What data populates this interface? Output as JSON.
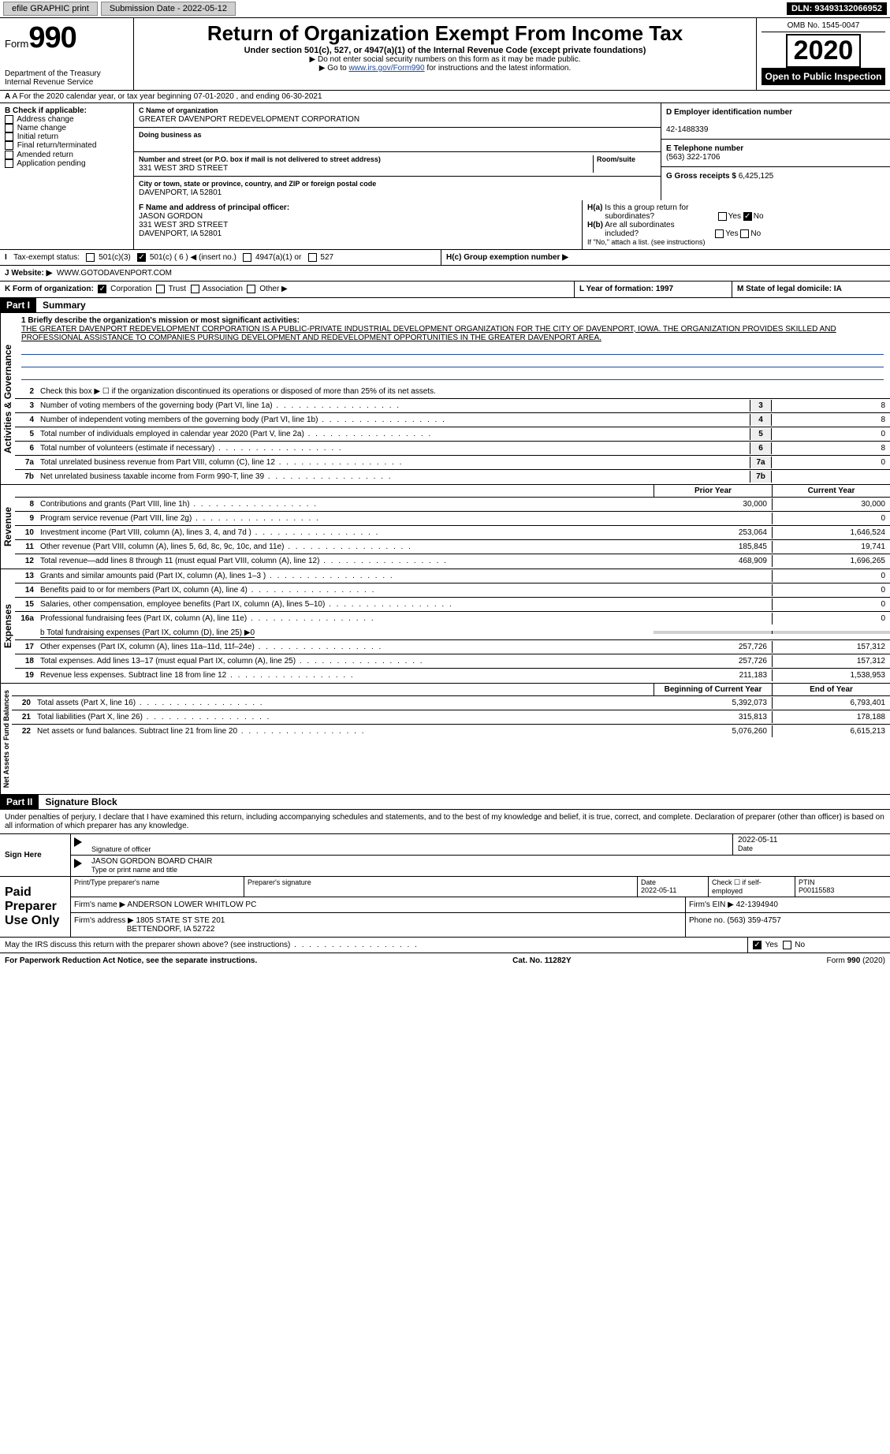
{
  "topbar": {
    "efile": "efile GRAPHIC print",
    "submission_lbl": "Submission Date - 2022-05-12",
    "dln_lbl": "DLN: 93493132066952"
  },
  "header": {
    "form_prefix": "Form",
    "form_num": "990",
    "dept": "Department of the Treasury",
    "irs": "Internal Revenue Service",
    "title": "Return of Organization Exempt From Income Tax",
    "subtitle": "Under section 501(c), 527, or 4947(a)(1) of the Internal Revenue Code (except private foundations)",
    "ssn_note": "▶ Do not enter social security numbers on this form as it may be made public.",
    "goto_prefix": "▶ Go to ",
    "goto_link": "www.irs.gov/Form990",
    "goto_suffix": " for instructions and the latest information.",
    "omb": "OMB No. 1545-0047",
    "year": "2020",
    "open": "Open to Public Inspection"
  },
  "rowA": {
    "text": "A For the 2020 calendar year, or tax year beginning 07-01-2020    , and ending 06-30-2021"
  },
  "boxB": {
    "title": "B Check if applicable:",
    "items": [
      "Address change",
      "Name change",
      "Initial return",
      "Final return/terminated",
      "Amended return",
      "Application pending"
    ]
  },
  "boxC": {
    "name_lbl": "C Name of organization",
    "name": "GREATER DAVENPORT REDEVELOPMENT CORPORATION",
    "dba_lbl": "Doing business as",
    "dba": "",
    "street_lbl": "Number and street (or P.O. box if mail is not delivered to street address)",
    "room_lbl": "Room/suite",
    "street": "331 WEST 3RD STREET",
    "city_lbl": "City or town, state or province, country, and ZIP or foreign postal code",
    "city": "DAVENPORT, IA  52801"
  },
  "boxD": {
    "lbl": "D Employer identification number",
    "val": "42-1488339"
  },
  "boxE": {
    "lbl": "E Telephone number",
    "val": "(563) 322-1706"
  },
  "boxG": {
    "lbl": "G Gross receipts $",
    "val": "6,425,125"
  },
  "boxF": {
    "lbl": "F  Name and address of principal officer:",
    "name": "JASON GORDON",
    "addr1": "331 WEST 3RD STREET",
    "addr2": "DAVENPORT, IA  52801"
  },
  "boxH": {
    "a_lbl": "H(a)  Is this a group return for subordinates?",
    "yes": "Yes",
    "no": "No",
    "b_lbl": "H(b)  Are all subordinates included?",
    "b_note": "If \"No,\" attach a list. (see instructions)",
    "c_lbl": "H(c)  Group exemption number ▶"
  },
  "rowI": {
    "lbl": "I    Tax-exempt status:",
    "opts": [
      "501(c)(3)",
      "501(c) ( 6 ) ◀ (insert no.)",
      "4947(a)(1) or",
      "527"
    ]
  },
  "rowJ": {
    "lbl": "J   Website: ▶",
    "val": "WWW.GOTODAVENPORT.COM"
  },
  "rowK": {
    "lbl": "K Form of organization:",
    "opts": [
      "Corporation",
      "Trust",
      "Association",
      "Other ▶"
    ]
  },
  "rowL": {
    "lbl": "L Year of formation: 1997"
  },
  "rowM": {
    "lbl": "M State of legal domicile: IA"
  },
  "part1": {
    "hdr": "Part I",
    "title": "Summary"
  },
  "mission": {
    "lbl": "1  Briefly describe the organization's mission or most significant activities:",
    "text": "THE GREATER DAVENPORT REDEVELOPMENT CORPORATION IS A PUBLIC-PRIVATE INDUSTRIAL DEVELOPMENT ORGANIZATION FOR THE CITY OF DAVENPORT, IOWA. THE ORGANIZATION PROVIDES SKILLED AND PROFESSIONAL ASSISTANCE TO COMPANIES PURSUING DEVELOPMENT AND REDEVELOPMENT OPPORTUNITIES IN THE GREATER DAVENPORT AREA."
  },
  "gov": {
    "tab": "Activities & Governance",
    "l2": "Check this box ▶ ☐ if the organization discontinued its operations or disposed of more than 25% of its net assets.",
    "lines": [
      {
        "n": "3",
        "d": "Number of voting members of the governing body (Part VI, line 1a)",
        "v": "8"
      },
      {
        "n": "4",
        "d": "Number of independent voting members of the governing body (Part VI, line 1b)",
        "v": "8"
      },
      {
        "n": "5",
        "d": "Total number of individuals employed in calendar year 2020 (Part V, line 2a)",
        "v": "0"
      },
      {
        "n": "6",
        "d": "Total number of volunteers (estimate if necessary)",
        "v": "8"
      },
      {
        "n": "7a",
        "d": "Total unrelated business revenue from Part VIII, column (C), line 12",
        "v": "0"
      },
      {
        "n": "7b",
        "d": "Net unrelated business taxable income from Form 990-T, line 39",
        "v": ""
      }
    ]
  },
  "colhdr": {
    "prior": "Prior Year",
    "current": "Current Year"
  },
  "rev": {
    "tab": "Revenue",
    "lines": [
      {
        "n": "8",
        "d": "Contributions and grants (Part VIII, line 1h)",
        "p": "30,000",
        "c": "30,000"
      },
      {
        "n": "9",
        "d": "Program service revenue (Part VIII, line 2g)",
        "p": "",
        "c": "0"
      },
      {
        "n": "10",
        "d": "Investment income (Part VIII, column (A), lines 3, 4, and 7d )",
        "p": "253,064",
        "c": "1,646,524"
      },
      {
        "n": "11",
        "d": "Other revenue (Part VIII, column (A), lines 5, 6d, 8c, 9c, 10c, and 11e)",
        "p": "185,845",
        "c": "19,741"
      },
      {
        "n": "12",
        "d": "Total revenue—add lines 8 through 11 (must equal Part VIII, column (A), line 12)",
        "p": "468,909",
        "c": "1,696,265"
      }
    ]
  },
  "exp": {
    "tab": "Expenses",
    "lines": [
      {
        "n": "13",
        "d": "Grants and similar amounts paid (Part IX, column (A), lines 1–3 )",
        "p": "",
        "c": "0"
      },
      {
        "n": "14",
        "d": "Benefits paid to or for members (Part IX, column (A), line 4)",
        "p": "",
        "c": "0"
      },
      {
        "n": "15",
        "d": "Salaries, other compensation, employee benefits (Part IX, column (A), lines 5–10)",
        "p": "",
        "c": "0"
      },
      {
        "n": "16a",
        "d": "Professional fundraising fees (Part IX, column (A), line 11e)",
        "p": "",
        "c": "0"
      }
    ],
    "b": "b   Total fundraising expenses (Part IX, column (D), line 25) ▶0",
    "lines2": [
      {
        "n": "17",
        "d": "Other expenses (Part IX, column (A), lines 11a–11d, 11f–24e)",
        "p": "257,726",
        "c": "157,312"
      },
      {
        "n": "18",
        "d": "Total expenses. Add lines 13–17 (must equal Part IX, column (A), line 25)",
        "p": "257,726",
        "c": "157,312"
      },
      {
        "n": "19",
        "d": "Revenue less expenses. Subtract line 18 from line 12",
        "p": "211,183",
        "c": "1,538,953"
      }
    ]
  },
  "net": {
    "tab": "Net Assets or Fund Balances",
    "hdr_b": "Beginning of Current Year",
    "hdr_e": "End of Year",
    "lines": [
      {
        "n": "20",
        "d": "Total assets (Part X, line 16)",
        "p": "5,392,073",
        "c": "6,793,401"
      },
      {
        "n": "21",
        "d": "Total liabilities (Part X, line 26)",
        "p": "315,813",
        "c": "178,188"
      },
      {
        "n": "22",
        "d": "Net assets or fund balances. Subtract line 21 from line 20",
        "p": "5,076,260",
        "c": "6,615,213"
      }
    ]
  },
  "part2": {
    "hdr": "Part II",
    "title": "Signature Block"
  },
  "penalty": "Under penalties of perjury, I declare that I have examined this return, including accompanying schedules and statements, and to the best of my knowledge and belief, it is true, correct, and complete. Declaration of preparer (other than officer) is based on all information of which preparer has any knowledge.",
  "sign": {
    "here": "Sign Here",
    "sig_lbl": "Signature of officer",
    "date_lbl": "Date",
    "date": "2022-05-11",
    "name": "JASON GORDON  BOARD CHAIR",
    "name_lbl": "Type or print name and title"
  },
  "paid": {
    "lbl": "Paid Preparer Use Only",
    "r1": {
      "c1": "Print/Type preparer's name",
      "c2": "Preparer's signature",
      "c3_lbl": "Date",
      "c3": "2022-05-11",
      "c4": "Check ☐ if self-employed",
      "c5_lbl": "PTIN",
      "c5": "P00115583"
    },
    "r2": {
      "lbl": "Firm's name     ▶",
      "val": "ANDERSON LOWER WHITLOW PC",
      "ein_lbl": "Firm's EIN ▶",
      "ein": "42-1394940"
    },
    "r3": {
      "lbl": "Firm's address ▶",
      "val": "1805 STATE ST STE 201",
      "city": "BETTENDORF, IA  52722",
      "ph_lbl": "Phone no.",
      "ph": "(563) 359-4757"
    }
  },
  "discuss": {
    "q": "May the IRS discuss this return with the preparer shown above? (see instructions)",
    "yes": "Yes",
    "no": "No"
  },
  "footer": {
    "left": "For Paperwork Reduction Act Notice, see the separate instructions.",
    "mid": "Cat. No. 11282Y",
    "right": "Form 990 (2020)"
  }
}
